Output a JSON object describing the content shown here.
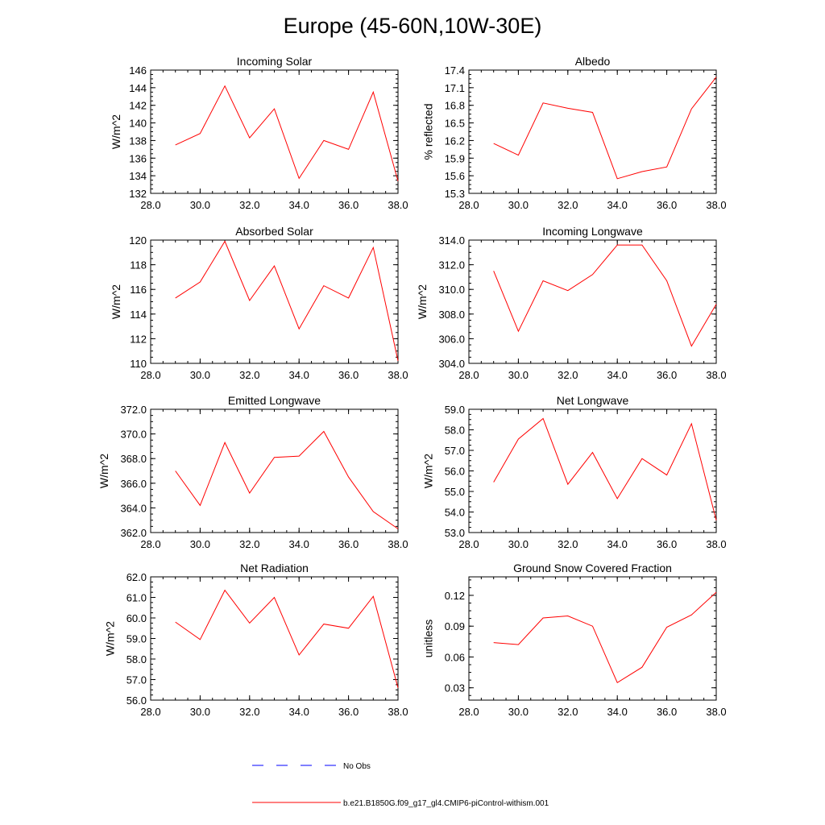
{
  "figure": {
    "title": "Europe (45-60N,10W-30E)",
    "line_color": "#ff0000",
    "obs_color": "#0000ff"
  },
  "legend": {
    "obs_label": "No Obs",
    "model_label": "b.e21.B1850G.f09_g17_gl4.CMIP6-piControl-withism.001"
  },
  "chart_data": [
    {
      "type": "line",
      "title": "Incoming Solar",
      "ylabel": "W/m^2",
      "xlim": [
        28,
        38
      ],
      "ylim": [
        132,
        146
      ],
      "xticks": [
        "28.0",
        "30.0",
        "32.0",
        "34.0",
        "36.0",
        "38.0"
      ],
      "yticks": [
        "132",
        "134",
        "136",
        "138",
        "140",
        "142",
        "144",
        "146"
      ],
      "x": [
        29,
        30,
        31,
        32,
        33,
        34,
        35,
        36,
        37,
        38
      ],
      "y": [
        137.5,
        138.8,
        144.2,
        138.3,
        141.6,
        133.7,
        138.0,
        137.0,
        143.5,
        133.4
      ]
    },
    {
      "type": "line",
      "title": "Albedo",
      "ylabel": "% reflected",
      "xlim": [
        28,
        38
      ],
      "ylim": [
        15.3,
        17.4
      ],
      "xticks": [
        "28.0",
        "30.0",
        "32.0",
        "34.0",
        "36.0",
        "38.0"
      ],
      "yticks": [
        "15.3",
        "15.6",
        "15.9",
        "16.2",
        "16.5",
        "16.8",
        "17.1",
        "17.4"
      ],
      "x": [
        29,
        30,
        31,
        32,
        33,
        34,
        35,
        36,
        37,
        38
      ],
      "y": [
        16.15,
        15.95,
        16.84,
        16.75,
        16.68,
        15.55,
        15.67,
        15.75,
        16.74,
        17.28
      ]
    },
    {
      "type": "line",
      "title": "Absorbed Solar",
      "ylabel": "W/m^2",
      "xlim": [
        28,
        38
      ],
      "ylim": [
        110,
        120
      ],
      "xticks": [
        "28.0",
        "30.0",
        "32.0",
        "34.0",
        "36.0",
        "38.0"
      ],
      "yticks": [
        "110",
        "112",
        "114",
        "116",
        "118",
        "120"
      ],
      "x": [
        29,
        30,
        31,
        32,
        33,
        34,
        35,
        36,
        37,
        38
      ],
      "y": [
        115.3,
        116.6,
        119.9,
        115.1,
        117.9,
        112.8,
        116.3,
        115.3,
        119.4,
        110.2
      ]
    },
    {
      "type": "line",
      "title": "Incoming Longwave",
      "ylabel": "W/m^2",
      "xlim": [
        28,
        38
      ],
      "ylim": [
        304,
        314
      ],
      "xticks": [
        "28.0",
        "30.0",
        "32.0",
        "34.0",
        "36.0",
        "38.0"
      ],
      "yticks": [
        "304.0",
        "306.0",
        "308.0",
        "310.0",
        "312.0",
        "314.0"
      ],
      "x": [
        29,
        30,
        31,
        32,
        33,
        34,
        35,
        36,
        37,
        38
      ],
      "y": [
        311.5,
        306.6,
        310.7,
        309.9,
        311.2,
        313.6,
        313.6,
        310.7,
        305.4,
        308.8
      ]
    },
    {
      "type": "line",
      "title": "Emitted Longwave",
      "ylabel": "W/m^2",
      "xlim": [
        28,
        38
      ],
      "ylim": [
        362,
        372
      ],
      "xticks": [
        "28.0",
        "30.0",
        "32.0",
        "34.0",
        "36.0",
        "38.0"
      ],
      "yticks": [
        "362.0",
        "364.0",
        "366.0",
        "368.0",
        "370.0",
        "372.0"
      ],
      "x": [
        29,
        30,
        31,
        32,
        33,
        34,
        35,
        36,
        37,
        38
      ],
      "y": [
        367.0,
        364.2,
        369.3,
        365.2,
        368.1,
        368.2,
        370.2,
        366.5,
        363.7,
        362.3
      ]
    },
    {
      "type": "line",
      "title": "Net Longwave",
      "ylabel": "W/m^2",
      "xlim": [
        28,
        38
      ],
      "ylim": [
        53,
        59
      ],
      "xticks": [
        "28.0",
        "30.0",
        "32.0",
        "34.0",
        "36.0",
        "38.0"
      ],
      "yticks": [
        "53.0",
        "54.0",
        "55.0",
        "56.0",
        "57.0",
        "58.0",
        "59.0"
      ],
      "x": [
        29,
        30,
        31,
        32,
        33,
        34,
        35,
        36,
        37,
        38
      ],
      "y": [
        55.45,
        57.55,
        58.55,
        55.35,
        56.9,
        54.65,
        56.6,
        55.8,
        58.3,
        53.6
      ]
    },
    {
      "type": "line",
      "title": "Net Radiation",
      "ylabel": "W/m^2",
      "xlim": [
        28,
        38
      ],
      "ylim": [
        56,
        62
      ],
      "xticks": [
        "28.0",
        "30.0",
        "32.0",
        "34.0",
        "36.0",
        "38.0"
      ],
      "yticks": [
        "56.0",
        "57.0",
        "58.0",
        "59.0",
        "60.0",
        "61.0",
        "62.0"
      ],
      "x": [
        29,
        30,
        31,
        32,
        33,
        34,
        35,
        36,
        37,
        38
      ],
      "y": [
        59.8,
        58.95,
        61.35,
        59.75,
        61.0,
        58.2,
        59.7,
        59.5,
        61.05,
        56.6
      ]
    },
    {
      "type": "line",
      "title": "Ground Snow Covered Fraction",
      "ylabel": "unitless",
      "xlim": [
        28,
        38
      ],
      "ylim": [
        0.018,
        0.138
      ],
      "xticks": [
        "28.0",
        "30.0",
        "32.0",
        "34.0",
        "36.0",
        "38.0"
      ],
      "yticks": [
        "0.03",
        "0.06",
        "0.09",
        "0.12"
      ],
      "ytick_values": [
        0.03,
        0.06,
        0.09,
        0.12
      ],
      "x": [
        29,
        30,
        31,
        32,
        33,
        34,
        35,
        36,
        37,
        38
      ],
      "y": [
        0.074,
        0.072,
        0.098,
        0.1,
        0.09,
        0.035,
        0.05,
        0.089,
        0.101,
        0.123
      ]
    }
  ]
}
